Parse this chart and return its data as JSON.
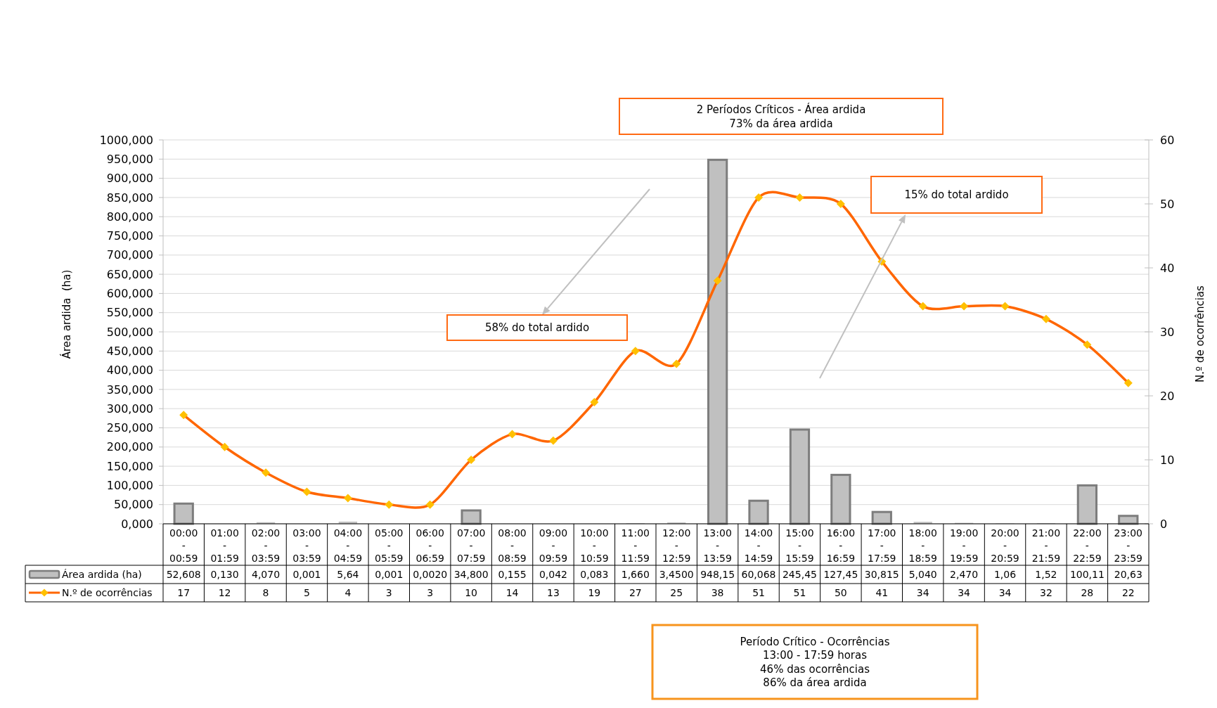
{
  "chart_data": {
    "type": "bar",
    "categories": [
      "00:00 - 00:59",
      "01:00 - 01:59",
      "02:00 - 03:59",
      "03:00 - 03:59",
      "04:00 - 04:59",
      "05:00 - 05:59",
      "06:00 - 06:59",
      "07:00 - 07:59",
      "08:00 - 08:59",
      "09:00 - 09:59",
      "10:00 - 10:59",
      "11:00 - 11:59",
      "12:00 - 12:59",
      "13:00 - 13:59",
      "14:00 - 14:59",
      "15:00 - 15:59",
      "16:00 - 16:59",
      "17:00 - 17:59",
      "18:00 - 18:59",
      "19:00 - 19:59",
      "20:00 - 20:59",
      "21:00 - 21:59",
      "22:00 - 22:59",
      "23:00 - 23:59"
    ],
    "series": [
      {
        "name": "Área ardida (ha)",
        "color": "#c0c0c0",
        "values": [
          52.608,
          0.13,
          4.07,
          0.001,
          5.64,
          0.001,
          0.002,
          34.8,
          0.155,
          0.042,
          0.083,
          1.66,
          3.45,
          948.15,
          60.068,
          245.45,
          127.45,
          30.815,
          5.04,
          2.47,
          1.06,
          1.52,
          100.11,
          20.63
        ],
        "value_labels": [
          "52,608",
          "0,130",
          "4,070",
          "0,001",
          "5,64",
          "0,001",
          "0,0020",
          "34,800",
          "0,155",
          "0,042",
          "0,083",
          "1,660",
          "3,4500",
          "948,15",
          "60,068",
          "245,45",
          "127,45",
          "30,815",
          "5,040",
          "2,470",
          "1,06",
          "1,52",
          "100,11",
          "20,63"
        ]
      },
      {
        "name": "N.º de ocorrências",
        "type": "line",
        "axis": "y2",
        "color": "#ff6600",
        "values": [
          17,
          12,
          8,
          5,
          4,
          3,
          3,
          10,
          14,
          13,
          19,
          27,
          25,
          38,
          51,
          51,
          50,
          41,
          34,
          34,
          34,
          32,
          28,
          22
        ],
        "value_labels": [
          "17",
          "12",
          "8",
          "5",
          "4",
          "3",
          "3",
          "10",
          "14",
          "13",
          "19",
          "27",
          "25",
          "38",
          "51",
          "51",
          "50",
          "41",
          "34",
          "34",
          "34",
          "32",
          "28",
          "22"
        ]
      }
    ],
    "ylabel": "Área ardida  (ha)",
    "y2label": "N.º de ocorrências",
    "ylim": [
      0,
      1000
    ],
    "yticks": [
      {
        "value": 0,
        "label": "0,000"
      },
      {
        "value": 50,
        "label": "50,000"
      },
      {
        "value": 100,
        "label": "100,000"
      },
      {
        "value": 150,
        "label": "150,000"
      },
      {
        "value": 200,
        "label": "200,000"
      },
      {
        "value": 250,
        "label": "250,000"
      },
      {
        "value": 300,
        "label": "300,000"
      },
      {
        "value": 350,
        "label": "350,000"
      },
      {
        "value": 400,
        "label": "400,000"
      },
      {
        "value": 450,
        "label": "450,000"
      },
      {
        "value": 500,
        "label": "500,000"
      },
      {
        "value": 550,
        "label": "550,000"
      },
      {
        "value": 600,
        "label": "600,000"
      },
      {
        "value": 650,
        "label": "650,000"
      },
      {
        "value": 700,
        "label": "700,000"
      },
      {
        "value": 750,
        "label": "750,000"
      },
      {
        "value": 800,
        "label": "800,000"
      },
      {
        "value": 850,
        "label": "850,000"
      },
      {
        "value": 900,
        "label": "900,000"
      },
      {
        "value": 950,
        "label": "950,000"
      },
      {
        "value": 1000,
        "label": "1000,000"
      }
    ],
    "y2lim": [
      0,
      60
    ],
    "y2ticks": [
      0,
      10,
      20,
      30,
      40,
      50,
      60
    ],
    "grid": "y",
    "legend": "bottom left",
    "marker": "diamond",
    "line_style": "solid",
    "annotations": [
      "2 Períodos Críticos - Área ardida\n73% da área ardida",
      "58% do total ardido",
      "15% do total ardido",
      "Período Crítico - Ocorrências\n13:00 - 17:59 horas\n46% das ocorrências\n86% da área ardida"
    ]
  }
}
